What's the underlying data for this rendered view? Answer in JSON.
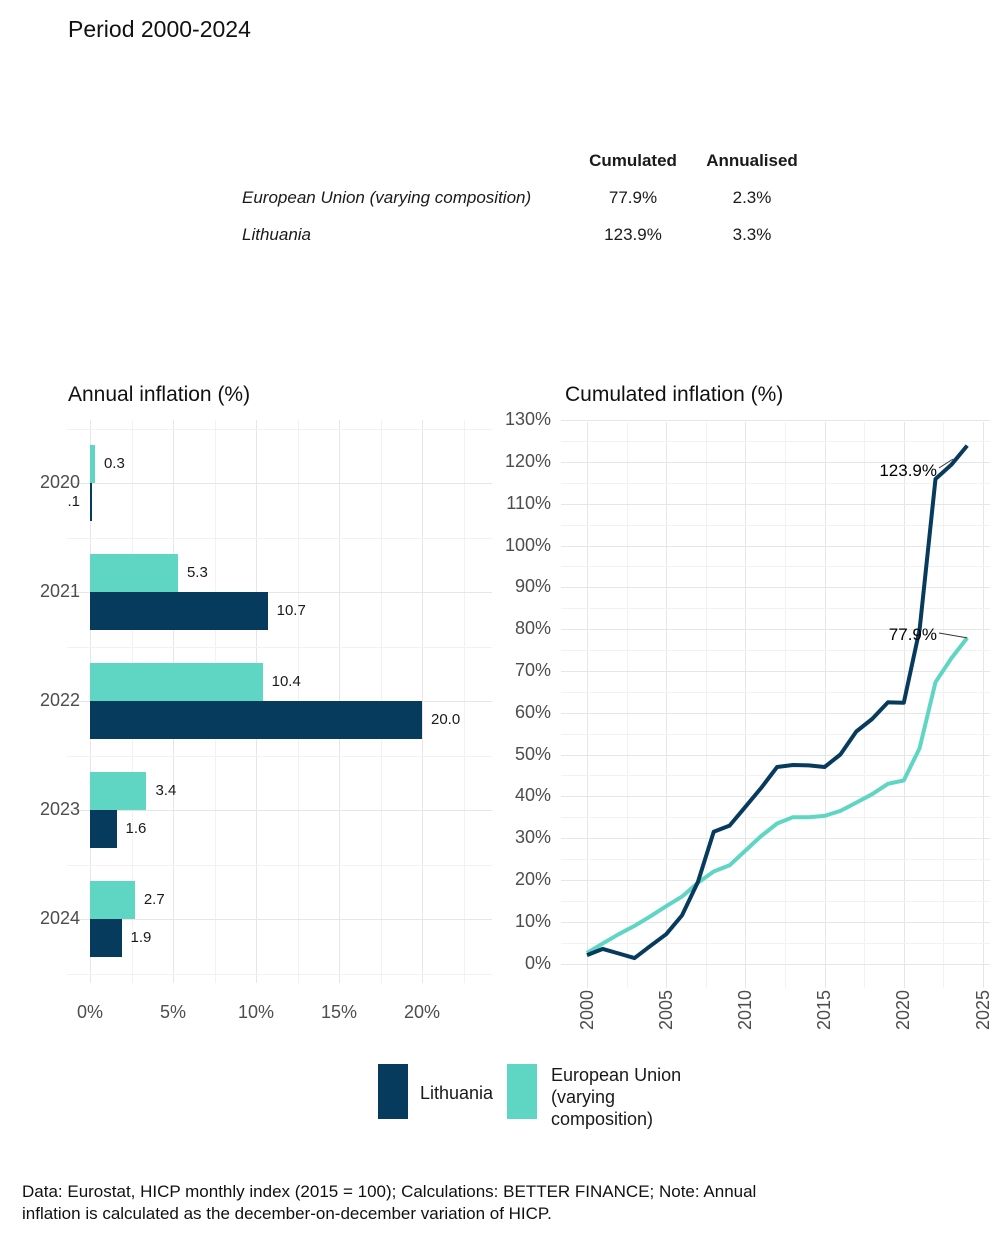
{
  "title": "Period 2000-2024",
  "colors": {
    "navy": "#073B5E",
    "teal": "#5FD5C4",
    "grid_major": "#E6E6E6",
    "grid_minor": "#F2F2F2",
    "tick_text": "#4D4D4D"
  },
  "summary_table": {
    "columns": [
      "Cumulated",
      "Annualised"
    ],
    "rows": [
      {
        "name": "European Union (varying composition)",
        "cumulated": "77.9%",
        "annualised": "2.3%"
      },
      {
        "name": "Lithuania",
        "cumulated": "123.9%",
        "annualised": "3.3%"
      }
    ]
  },
  "chart_data": [
    {
      "type": "bar",
      "orientation": "horizontal",
      "title": "Annual inflation (%)",
      "categories": [
        "2020",
        "2021",
        "2022",
        "2023",
        "2024"
      ],
      "series": [
        {
          "name": "Lithuania",
          "color": "#073B5E",
          "row": 1,
          "values": [
            0.1,
            10.7,
            20.0,
            1.6,
            1.9
          ],
          "labels": [
            ".1",
            "10.7",
            "20.0",
            "1.6",
            "1.9"
          ],
          "label_sides": [
            "left",
            "right",
            "right",
            "right",
            "right"
          ]
        },
        {
          "name": "European Union (varying composition)",
          "color": "#5FD5C4",
          "row": 0,
          "values": [
            0.3,
            5.3,
            10.4,
            3.4,
            2.7
          ],
          "labels": [
            "0.3",
            "5.3",
            "10.4",
            "3.4",
            "2.7"
          ],
          "label_sides": [
            "right",
            "right",
            "right",
            "right",
            "right"
          ]
        }
      ],
      "x_ticks": [
        "0%",
        "5%",
        "10%",
        "15%",
        "20%"
      ],
      "xlim": [
        0,
        23.5
      ],
      "grid": true
    },
    {
      "type": "line",
      "title": "Cumulated inflation (%)",
      "x": [
        2000,
        2001,
        2002,
        2003,
        2004,
        2005,
        2006,
        2007,
        2008,
        2009,
        2010,
        2011,
        2012,
        2013,
        2014,
        2015,
        2016,
        2017,
        2018,
        2019,
        2020,
        2021,
        2022,
        2023,
        2024
      ],
      "series": [
        {
          "name": "Lithuania",
          "color": "#073B5E",
          "z": 2,
          "values": [
            2.0,
            3.5,
            2.4,
            1.3,
            4.2,
            7.0,
            11.5,
            19.5,
            31.5,
            33.0,
            37.5,
            42.0,
            47.0,
            47.5,
            47.4,
            47.0,
            50.0,
            55.5,
            58.5,
            62.5,
            62.4,
            79.9,
            115.9,
            119.3,
            123.9
          ]
        },
        {
          "name": "European Union (varying composition)",
          "color": "#5FD5C4",
          "z": 1,
          "values": [
            2.5,
            4.8,
            7.0,
            9.0,
            11.3,
            13.7,
            16.0,
            19.3,
            22.0,
            23.5,
            27.0,
            30.5,
            33.5,
            35.0,
            35.0,
            35.3,
            36.5,
            38.5,
            40.5,
            43.0,
            43.8,
            51.5,
            67.3,
            73.0,
            77.9
          ]
        }
      ],
      "y_ticks": [
        "0%",
        "10%",
        "20%",
        "30%",
        "40%",
        "50%",
        "60%",
        "70%",
        "80%",
        "90%",
        "100%",
        "110%",
        "120%",
        "130%"
      ],
      "x_ticks": [
        "2000",
        "2005",
        "2010",
        "2015",
        "2020",
        "2025"
      ],
      "ylim": [
        0,
        130
      ],
      "xlim": [
        2000,
        2025
      ],
      "grid": true,
      "annotations": [
        {
          "text": "123.9%",
          "series": "Lithuania",
          "x": 2024,
          "y": 123.9
        },
        {
          "text": "77.9%",
          "series": "European Union (varying composition)",
          "x": 2024,
          "y": 77.9
        }
      ]
    }
  ],
  "legend": {
    "items": [
      {
        "color": "#073B5E",
        "lines": [
          "Lithuania"
        ]
      },
      {
        "color": "#5FD5C4",
        "lines": [
          "European Union",
          "(varying",
          "composition)"
        ]
      }
    ]
  },
  "footer": {
    "lines": [
      "Data: Eurostat, HICP monthly index (2015 = 100); Calculations: BETTER FINANCE; Note: Annual",
      "inflation is calculated as the december-on-december variation of HICP."
    ]
  }
}
